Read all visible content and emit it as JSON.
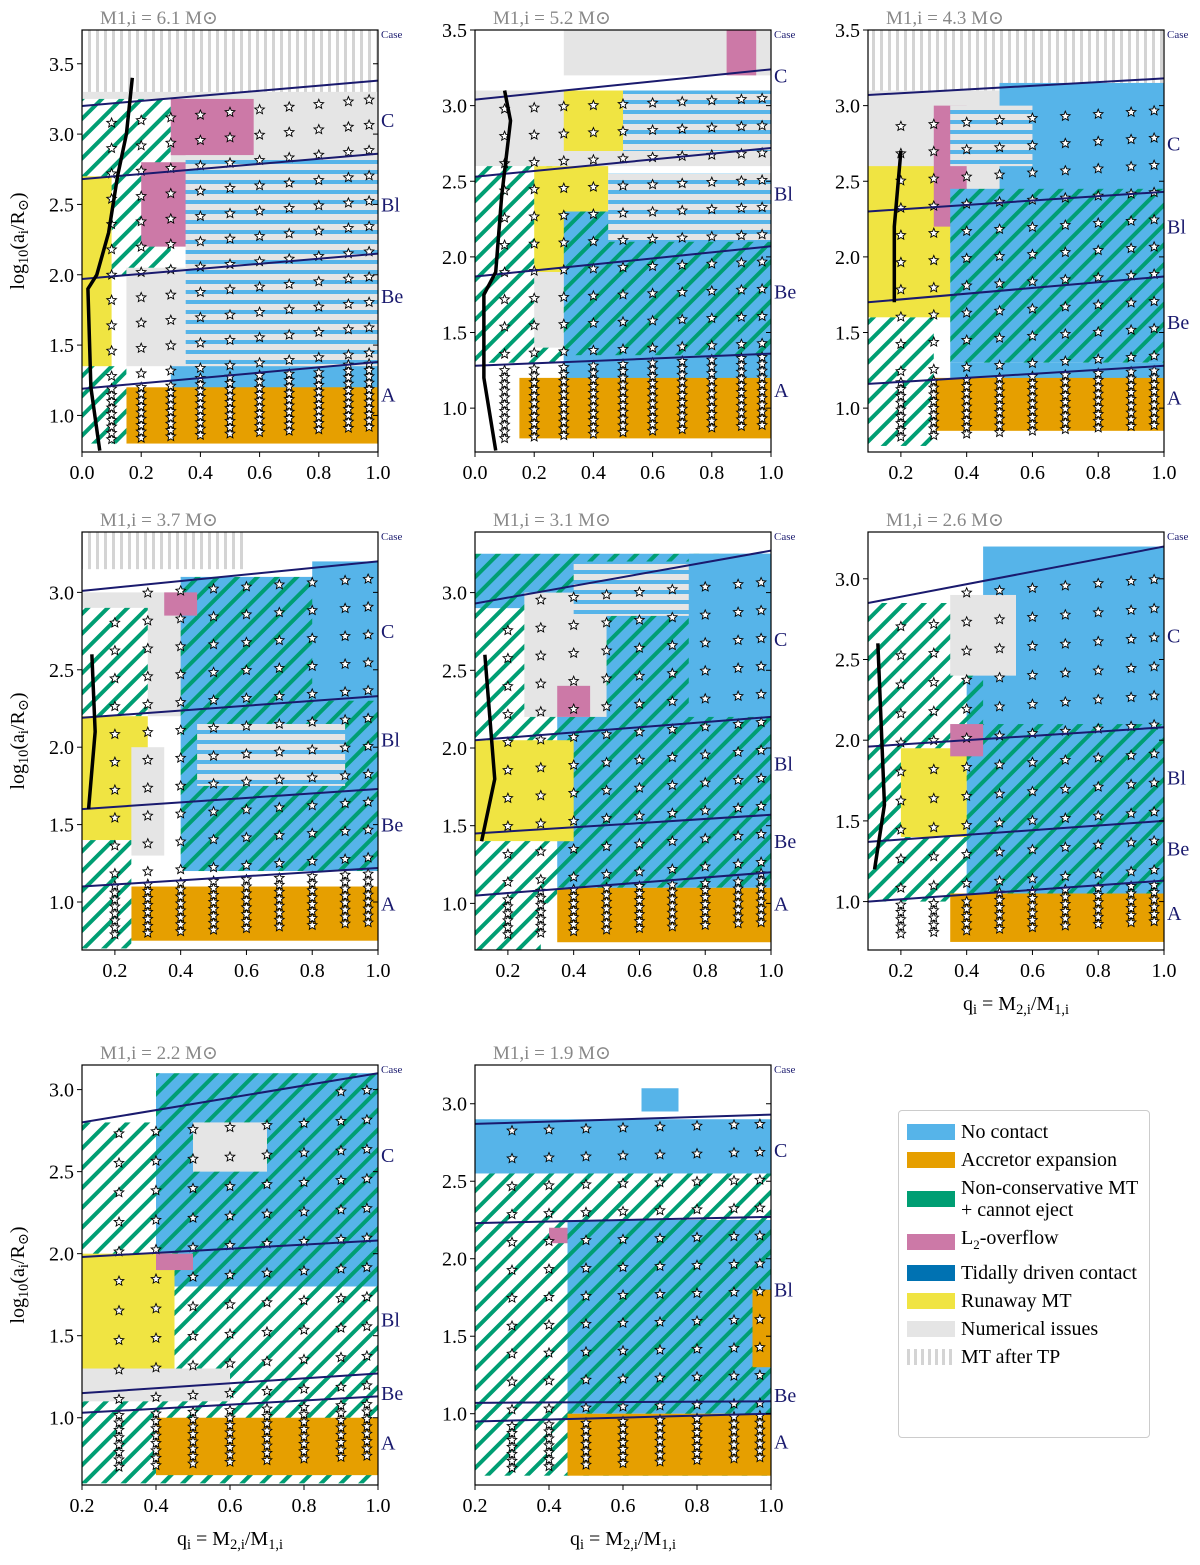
{
  "colors": {
    "no_contact": "#56b4e9",
    "accretor": "#e69f00",
    "nonconservative": "#009e73",
    "l2": "#cc79a7",
    "tidal": "#0072b2",
    "runaway": "#f0e442",
    "numerical": "#e5e5e5",
    "tp": "#cfcfcf",
    "boundary": "#1a1a6e"
  },
  "legend": [
    {
      "key": "nc",
      "label": "No contact",
      "color": "#56b4e9"
    },
    {
      "key": "acc",
      "label": "Accretor expansion",
      "color": "#e69f00"
    },
    {
      "key": "green",
      "label": "Non-conservative MT + cannot eject",
      "color": "#009e73"
    },
    {
      "key": "pink",
      "label": "L2-overflow",
      "color": "#cc79a7"
    },
    {
      "key": "tidal",
      "label": "Tidally driven contact",
      "color": "#0072b2"
    },
    {
      "key": "yellow",
      "label": "Runaway MT",
      "color": "#f0e442"
    },
    {
      "key": "num",
      "label": "Numerical issues",
      "color": "#e5e5e5"
    },
    {
      "key": "tp",
      "label": "MT after TP",
      "color": "#cfcfcf"
    }
  ],
  "chart_data": [
    {
      "type": "heatmap",
      "title": "M1,i = 6.1 M⊙",
      "xlim": [
        0,
        1
      ],
      "ylim": [
        0.74,
        3.74
      ],
      "xticks": [
        "0.0",
        "0.2",
        "0.4",
        "0.6",
        "0.8",
        "1.0"
      ],
      "yticks": [
        "1.0",
        "1.5",
        "2.0",
        "2.5",
        "3.0",
        "3.5"
      ],
      "ylabel": "log10(ai/R⊙)",
      "xlabel": "",
      "boundaries": [
        [
          3.2,
          3.38
        ],
        [
          2.68,
          2.86
        ],
        [
          1.97,
          2.15
        ],
        [
          1.19,
          1.38
        ]
      ],
      "case_label": "Case",
      "cases": [
        {
          "label": "C",
          "y": 3.1
        },
        {
          "label": "Bl",
          "y": 2.5
        },
        {
          "label": "Be",
          "y": 1.85
        },
        {
          "label": "A",
          "y": 1.15
        }
      ],
      "regions": [
        [
          "tp",
          0,
          1,
          3.25,
          3.74
        ],
        [
          "num",
          0,
          1,
          2.75,
          3.3
        ],
        [
          "green",
          0,
          0.3,
          2.0,
          3.25
        ],
        [
          "yellow",
          0,
          0.1,
          1.0,
          2.7
        ],
        [
          "pink",
          0.3,
          0.58,
          2.85,
          3.25
        ],
        [
          "pink",
          0.2,
          0.45,
          2.2,
          2.8
        ],
        [
          "bluestripe",
          0.35,
          1,
          1.3,
          2.85
        ],
        [
          "num",
          0.15,
          0.35,
          1.35,
          2.05
        ],
        [
          "nc",
          0.3,
          1,
          1.1,
          1.35
        ],
        [
          "acc",
          0.15,
          1,
          0.8,
          1.2
        ],
        [
          "green",
          0,
          0.15,
          0.8,
          1.35
        ]
      ],
      "star_q": [
        0.1,
        0.2,
        0.3,
        0.4,
        0.5,
        0.6,
        0.7,
        0.8,
        0.9,
        0.97
      ],
      "curve": [
        [
          0.06,
          0.75
        ],
        [
          0.03,
          1.2
        ],
        [
          0.02,
          1.9
        ],
        [
          0.05,
          2.0
        ],
        [
          0.09,
          2.3
        ],
        [
          0.12,
          2.7
        ],
        [
          0.15,
          3.0
        ],
        [
          0.17,
          3.4
        ]
      ]
    },
    {
      "type": "heatmap",
      "title": "M1,i = 5.2 M⊙",
      "xlim": [
        0,
        1
      ],
      "ylim": [
        0.71,
        3.5
      ],
      "xticks": [
        "0.0",
        "0.2",
        "0.4",
        "0.6",
        "0.8",
        "1.0"
      ],
      "yticks": [
        "1.0",
        "1.5",
        "2.0",
        "2.5",
        "3.0",
        "3.5"
      ],
      "ylabel": "",
      "xlabel": "",
      "boundaries": [
        [
          3.04,
          3.24
        ],
        [
          2.53,
          2.72
        ],
        [
          1.87,
          2.07
        ],
        [
          1.28,
          1.36
        ]
      ],
      "case_label": "Case",
      "cases": [
        {
          "label": "C",
          "y": 3.2
        },
        {
          "label": "Bl",
          "y": 2.42
        },
        {
          "label": "Be",
          "y": 1.77
        },
        {
          "label": "A",
          "y": 1.12
        }
      ],
      "regions": [
        [
          "num",
          0.3,
          1,
          3.2,
          3.5
        ],
        [
          "pink",
          0.85,
          0.95,
          3.2,
          3.5
        ],
        [
          "num",
          0,
          1,
          2.6,
          3.1
        ],
        [
          "yellow",
          0.3,
          0.55,
          2.7,
          3.1
        ],
        [
          "bluestripe",
          0.5,
          1,
          2.7,
          3.1
        ],
        [
          "green",
          0,
          0.3,
          1.3,
          2.6
        ],
        [
          "yellow",
          0.2,
          0.45,
          1.9,
          2.6
        ],
        [
          "num",
          0.2,
          0.3,
          1.4,
          1.9
        ],
        [
          "ncgreen",
          0.3,
          1,
          1.3,
          2.3
        ],
        [
          "bluestripe",
          0.45,
          1,
          2.1,
          2.55
        ],
        [
          "nc",
          0.3,
          1,
          1.15,
          1.35
        ],
        [
          "acc",
          0.15,
          1,
          0.8,
          1.2
        ]
      ],
      "star_q": [
        0.1,
        0.2,
        0.3,
        0.4,
        0.5,
        0.6,
        0.7,
        0.8,
        0.9,
        0.97
      ],
      "curve": [
        [
          0.07,
          0.72
        ],
        [
          0.03,
          1.2
        ],
        [
          0.03,
          1.75
        ],
        [
          0.07,
          1.9
        ],
        [
          0.09,
          2.4
        ],
        [
          0.12,
          2.9
        ],
        [
          0.1,
          3.1
        ]
      ]
    },
    {
      "type": "heatmap",
      "title": "M1,i = 4.3 M⊙",
      "xlim": [
        0.1,
        1
      ],
      "ylim": [
        0.71,
        3.5
      ],
      "xticks": [
        "0.2",
        "0.4",
        "0.6",
        "0.8",
        "1.0"
      ],
      "yticks": [
        "1.0",
        "1.5",
        "2.0",
        "2.5",
        "3.0",
        "3.5"
      ],
      "ylabel": "",
      "xlabel": "",
      "boundaries": [
        [
          3.07,
          3.18
        ],
        [
          2.3,
          2.43
        ],
        [
          1.7,
          1.87
        ],
        [
          1.16,
          1.28
        ]
      ],
      "case_label": "Case",
      "cases": [
        {
          "label": "C",
          "y": 2.75
        },
        {
          "label": "Bl",
          "y": 2.2
        },
        {
          "label": "Be",
          "y": 1.57
        },
        {
          "label": "A",
          "y": 1.07
        }
      ],
      "regions": [
        [
          "tp",
          0.1,
          1,
          3.1,
          3.5
        ],
        [
          "num",
          0.1,
          0.5,
          2.4,
          3.1
        ],
        [
          "yellow",
          0.1,
          0.35,
          1.6,
          2.6
        ],
        [
          "pink",
          0.3,
          0.4,
          2.2,
          3.0
        ],
        [
          "nc",
          0.5,
          1,
          2.4,
          3.15
        ],
        [
          "bluestripe",
          0.35,
          0.6,
          2.6,
          3.0
        ],
        [
          "ncgreen",
          0.35,
          1,
          1.3,
          2.45
        ],
        [
          "nc",
          0.35,
          1,
          1.1,
          1.3
        ],
        [
          "acc",
          0.25,
          1,
          0.85,
          1.2
        ],
        [
          "green",
          0.1,
          0.3,
          0.75,
          1.6
        ]
      ],
      "star_q": [
        0.2,
        0.3,
        0.4,
        0.5,
        0.6,
        0.7,
        0.8,
        0.9,
        0.97
      ],
      "curve": [
        [
          0.18,
          1.7
        ],
        [
          0.18,
          2.2
        ],
        [
          0.2,
          2.7
        ]
      ]
    },
    {
      "type": "heatmap",
      "title": "M1,i = 3.7 M⊙",
      "xlim": [
        0.1,
        1
      ],
      "ylim": [
        0.69,
        3.39
      ],
      "xticks": [
        "0.2",
        "0.4",
        "0.6",
        "0.8",
        "1.0"
      ],
      "yticks": [
        "1.0",
        "1.5",
        "2.0",
        "2.5",
        "3.0"
      ],
      "ylabel": "log10(ai/R⊙)",
      "xlabel": "",
      "boundaries": [
        [
          3.01,
          3.2
        ],
        [
          2.19,
          2.33
        ],
        [
          1.6,
          1.73
        ],
        [
          1.1,
          1.22
        ]
      ],
      "case_label": "Case",
      "cases": [
        {
          "label": "C",
          "y": 2.75
        },
        {
          "label": "Bl",
          "y": 2.05
        },
        {
          "label": "Be",
          "y": 1.5
        },
        {
          "label": "A",
          "y": 0.99
        }
      ],
      "regions": [
        [
          "tp",
          0.1,
          0.6,
          3.15,
          3.39
        ],
        [
          "num",
          0.1,
          0.45,
          2.2,
          3.0
        ],
        [
          "green",
          0.1,
          0.3,
          2.2,
          2.9
        ],
        [
          "ncgreen",
          0.4,
          1,
          1.2,
          3.1
        ],
        [
          "pink",
          0.35,
          0.45,
          2.85,
          3.0
        ],
        [
          "nc",
          0.8,
          1,
          2.3,
          3.2
        ],
        [
          "bluestripe",
          0.45,
          0.9,
          1.75,
          2.15
        ],
        [
          "yellow",
          0.1,
          0.3,
          1.4,
          2.2
        ],
        [
          "num",
          0.25,
          0.35,
          1.3,
          2.0
        ],
        [
          "acc",
          0.25,
          1,
          0.75,
          1.1
        ],
        [
          "green",
          0.1,
          0.25,
          0.7,
          1.4
        ]
      ],
      "star_q": [
        0.2,
        0.3,
        0.4,
        0.5,
        0.6,
        0.7,
        0.8,
        0.9,
        0.97
      ],
      "curve": [
        [
          0.12,
          1.6
        ],
        [
          0.14,
          2.1
        ],
        [
          0.13,
          2.6
        ]
      ]
    },
    {
      "type": "heatmap",
      "title": "M1,i = 3.1 M⊙",
      "xlim": [
        0.1,
        1
      ],
      "ylim": [
        0.7,
        3.39
      ],
      "xticks": [
        "0.2",
        "0.4",
        "0.6",
        "0.8",
        "1.0"
      ],
      "yticks": [
        "1.0",
        "1.5",
        "2.0",
        "2.5",
        "3.0"
      ],
      "ylabel": "",
      "xlabel": "",
      "boundaries": [
        [
          2.93,
          3.27
        ],
        [
          2.05,
          2.2
        ],
        [
          1.45,
          1.57
        ],
        [
          1.05,
          1.2
        ]
      ],
      "case_label": "Case",
      "cases": [
        {
          "label": "C",
          "y": 2.7
        },
        {
          "label": "Bl",
          "y": 1.9
        },
        {
          "label": "Be",
          "y": 1.4
        },
        {
          "label": "A",
          "y": 1.0
        }
      ],
      "regions": [
        [
          "ncgreen",
          0.1,
          1,
          1.1,
          3.25
        ],
        [
          "green",
          0.1,
          0.35,
          1.0,
          2.9
        ],
        [
          "num",
          0.25,
          0.5,
          2.2,
          3.0
        ],
        [
          "bluestripe",
          0.4,
          0.9,
          2.85,
          3.2
        ],
        [
          "nc",
          0.75,
          1,
          2.2,
          3.25
        ],
        [
          "yellow",
          0.1,
          0.4,
          1.4,
          2.05
        ],
        [
          "pink",
          0.35,
          0.45,
          2.2,
          2.4
        ],
        [
          "acc",
          0.35,
          1,
          0.75,
          1.1
        ],
        [
          "green",
          0.1,
          0.3,
          0.7,
          1.4
        ]
      ],
      "star_q": [
        0.2,
        0.3,
        0.4,
        0.5,
        0.6,
        0.7,
        0.8,
        0.9,
        0.97
      ],
      "curve": [
        [
          0.12,
          1.4
        ],
        [
          0.16,
          1.8
        ],
        [
          0.13,
          2.6
        ]
      ]
    },
    {
      "type": "heatmap",
      "title": "M1,i = 2.6 M⊙",
      "xlim": [
        0.1,
        1
      ],
      "ylim": [
        0.7,
        3.29
      ],
      "xticks": [
        "0.2",
        "0.4",
        "0.6",
        "0.8",
        "1.0"
      ],
      "yticks": [
        "1.0",
        "1.5",
        "2.0",
        "2.5",
        "3.0"
      ],
      "ylabel": "",
      "xlabel": "qi = M2,i/M1,i",
      "boundaries": [
        [
          2.85,
          3.2
        ],
        [
          1.96,
          2.08
        ],
        [
          1.37,
          1.5
        ],
        [
          1.0,
          1.13
        ]
      ],
      "case_label": "Case",
      "cases": [
        {
          "label": "C",
          "y": 2.65
        },
        {
          "label": "Bl",
          "y": 1.77
        },
        {
          "label": "Be",
          "y": 1.33
        },
        {
          "label": "A",
          "y": 0.93
        }
      ],
      "regions": [
        [
          "green",
          0.1,
          0.45,
          1.0,
          2.85
        ],
        [
          "ncgreen",
          0.4,
          1,
          1.0,
          2.85
        ],
        [
          "nc",
          0.45,
          1,
          2.1,
          3.2
        ],
        [
          "num",
          0.35,
          0.55,
          2.4,
          2.9
        ],
        [
          "yellow",
          0.2,
          0.4,
          1.4,
          1.95
        ],
        [
          "pink",
          0.35,
          0.45,
          1.9,
          2.1
        ],
        [
          "acc",
          0.35,
          1,
          0.75,
          1.05
        ]
      ],
      "star_q": [
        0.2,
        0.3,
        0.4,
        0.5,
        0.6,
        0.7,
        0.8,
        0.9,
        0.97
      ],
      "curve": [
        [
          0.12,
          1.2
        ],
        [
          0.15,
          1.6
        ],
        [
          0.13,
          2.6
        ]
      ]
    },
    {
      "type": "heatmap",
      "title": "M1,i = 2.2 M⊙",
      "xlim": [
        0.2,
        1
      ],
      "ylim": [
        0.59,
        3.15
      ],
      "xticks": [
        "0.2",
        "0.4",
        "0.6",
        "0.8",
        "1.0"
      ],
      "yticks": [
        "1.0",
        "1.5",
        "2.0",
        "2.5",
        "3.0"
      ],
      "ylabel": "log10(ai/R⊙)",
      "xlabel": "qi = M2,i/M1,i",
      "boundaries": [
        [
          2.8,
          3.1
        ],
        [
          1.98,
          2.08
        ],
        [
          1.15,
          1.27
        ],
        [
          1.03,
          1.13
        ]
      ],
      "case_label": "Case",
      "cases": [
        {
          "label": "C",
          "y": 2.6
        },
        {
          "label": "Bl",
          "y": 1.6
        },
        {
          "label": "Be",
          "y": 1.15
        },
        {
          "label": "A",
          "y": 0.85
        }
      ],
      "regions": [
        [
          "green",
          0.2,
          1,
          0.6,
          2.8
        ],
        [
          "ncgreen",
          0.4,
          1,
          1.8,
          3.1
        ],
        [
          "num",
          0.5,
          0.7,
          2.5,
          2.8
        ],
        [
          "yellow",
          0.2,
          0.45,
          1.2,
          2.0
        ],
        [
          "pink",
          0.4,
          0.5,
          1.9,
          2.0
        ],
        [
          "num",
          0.2,
          0.6,
          1.1,
          1.3
        ],
        [
          "acc",
          0.4,
          1,
          0.65,
          1.0
        ]
      ],
      "star_q": [
        0.3,
        0.4,
        0.5,
        0.6,
        0.7,
        0.8,
        0.9,
        0.97
      ],
      "curve": []
    },
    {
      "type": "heatmap",
      "title": "M1,i = 1.9 M⊙",
      "xlim": [
        0.2,
        1
      ],
      "ylim": [
        0.54,
        3.25
      ],
      "xticks": [
        "0.2",
        "0.4",
        "0.6",
        "0.8",
        "1.0"
      ],
      "yticks": [
        "1.0",
        "1.5",
        "2.0",
        "2.5",
        "3.0"
      ],
      "ylabel": "",
      "xlabel": "qi = M2,i/M1,i",
      "boundaries": [
        [
          2.87,
          2.93
        ],
        [
          2.23,
          2.27
        ],
        [
          1.07,
          1.08
        ],
        [
          0.95,
          1.0
        ]
      ],
      "case_label": "Case",
      "cases": [
        {
          "label": "C",
          "y": 2.7
        },
        {
          "label": "Bl",
          "y": 1.8
        },
        {
          "label": "Be",
          "y": 1.12
        },
        {
          "label": "A",
          "y": 0.82
        }
      ],
      "regions": [
        [
          "nc",
          0.2,
          1,
          2.55,
          2.9
        ],
        [
          "green",
          0.2,
          1,
          0.6,
          2.55
        ],
        [
          "ncgreen",
          0.45,
          1,
          1.0,
          2.25
        ],
        [
          "pink",
          0.4,
          0.45,
          2.1,
          2.2
        ],
        [
          "acc",
          0.45,
          1,
          0.6,
          1.0
        ],
        [
          "acc",
          0.95,
          1,
          1.3,
          1.8
        ],
        [
          "nc",
          0.65,
          0.75,
          2.95,
          3.1
        ]
      ],
      "star_q": [
        0.3,
        0.4,
        0.5,
        0.6,
        0.7,
        0.8,
        0.9,
        0.97
      ],
      "curve": []
    }
  ]
}
